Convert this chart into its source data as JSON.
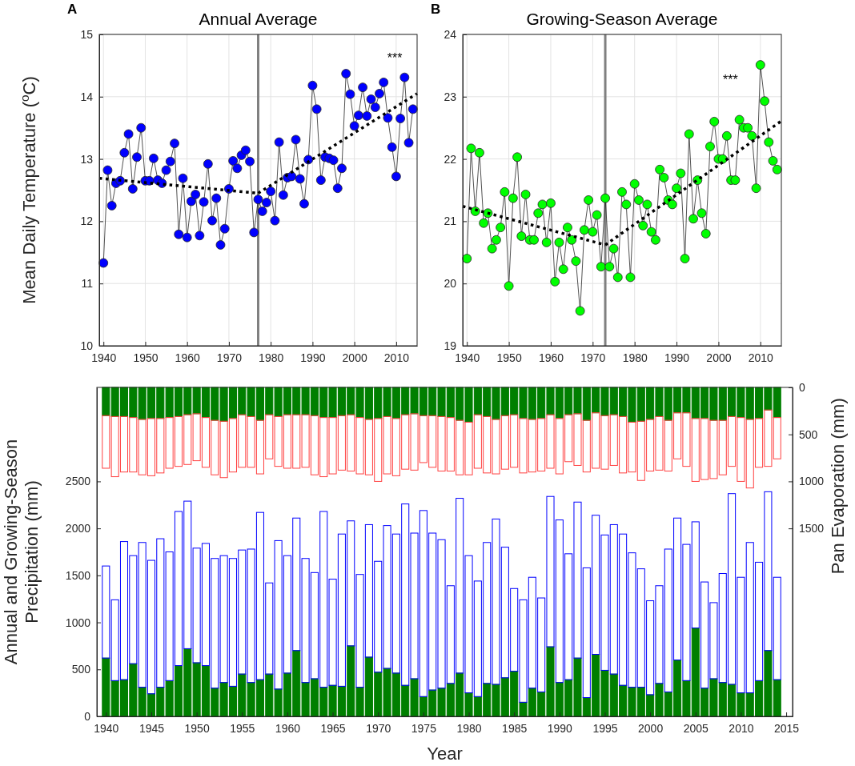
{
  "chart_data": [
    {
      "type": "line",
      "title": "Annual Average",
      "ylabel": "Mean Daily Temperature ($^{o}$C)",
      "x": [
        1940,
        1941,
        1942,
        1943,
        1944,
        1945,
        1946,
        1947,
        1948,
        1949,
        1950,
        1951,
        1952,
        1953,
        1954,
        1955,
        1956,
        1957,
        1958,
        1959,
        1960,
        1961,
        1962,
        1963,
        1964,
        1965,
        1966,
        1967,
        1968,
        1969,
        1970,
        1971,
        1972,
        1973,
        1974,
        1975,
        1976,
        1977,
        1978,
        1979,
        1980,
        1981,
        1982,
        1983,
        1984,
        1985,
        1986,
        1987,
        1988,
        1989,
        1990,
        1991,
        1992,
        1993,
        1994,
        1995,
        1996,
        1997,
        1998,
        1999,
        2000,
        2001,
        2002,
        2003,
        2004,
        2005,
        2006,
        2007,
        2008,
        2009,
        2010,
        2011,
        2012,
        2013,
        2014
      ],
      "series": [
        {
          "color": "#0000ff",
          "marker": "circle",
          "values": [
            11.33,
            12.82,
            12.25,
            12.61,
            12.65,
            13.1,
            13.4,
            12.52,
            13.03,
            13.5,
            12.65,
            12.65,
            13.01,
            12.66,
            12.61,
            12.82,
            12.96,
            13.25,
            11.79,
            12.69,
            11.74,
            12.32,
            12.43,
            11.77,
            12.31,
            12.92,
            12.01,
            12.37,
            11.62,
            11.88,
            12.52,
            12.97,
            12.85,
            13.06,
            13.14,
            12.96,
            11.82,
            12.35,
            12.16,
            12.3,
            12.48,
            12.01,
            13.27,
            12.42,
            12.7,
            12.72,
            13.31,
            12.68,
            12.28,
            12.99,
            14.18,
            13.8,
            12.66,
            13.03,
            13.01,
            12.98,
            12.53,
            12.85,
            14.37,
            14.04,
            13.53,
            13.7,
            14.15,
            13.69,
            13.96,
            13.83,
            14.05,
            14.23,
            13.66,
            13.19,
            12.72,
            13.65,
            14.31,
            13.26,
            13.8
          ]
        },
        {
          "type": "line",
          "x": [
            1939,
            1977
          ],
          "values": [
            12.69,
            12.45
          ],
          "color": "#000000",
          "line_style": "dotted",
          "marker": "none"
        },
        {
          "type": "line",
          "x": [
            1977,
            2015
          ],
          "values": [
            12.45,
            14.05
          ],
          "color": "#000000",
          "line_style": "dotted",
          "marker": "none"
        }
      ],
      "xlim": [
        1939,
        2015
      ],
      "xticks": [
        1940,
        1950,
        1960,
        1970,
        1980,
        1990,
        2000,
        2010
      ],
      "ylim": [
        10,
        15
      ],
      "yticks": [
        10,
        11,
        12,
        13,
        14,
        15
      ],
      "grid": true,
      "ref_lines": [
        {
          "axis": "x",
          "value": 1977,
          "color": "#808080"
        }
      ],
      "annotations": [
        "A",
        "***"
      ]
    },
    {
      "type": "line",
      "title": "Growing-Season Average",
      "x": [
        1940,
        1941,
        1942,
        1943,
        1944,
        1945,
        1946,
        1947,
        1948,
        1949,
        1950,
        1951,
        1952,
        1953,
        1954,
        1955,
        1956,
        1957,
        1958,
        1959,
        1960,
        1961,
        1962,
        1963,
        1964,
        1965,
        1966,
        1967,
        1968,
        1969,
        1970,
        1971,
        1972,
        1973,
        1974,
        1975,
        1976,
        1977,
        1978,
        1979,
        1980,
        1981,
        1982,
        1983,
        1984,
        1985,
        1986,
        1987,
        1988,
        1989,
        1990,
        1991,
        1992,
        1993,
        1994,
        1995,
        1996,
        1997,
        1998,
        1999,
        2000,
        2001,
        2002,
        2003,
        2004,
        2005,
        2006,
        2007,
        2008,
        2009,
        2010,
        2011,
        2012,
        2013,
        2014
      ],
      "series": [
        {
          "color": "#00ff00",
          "marker": "circle",
          "values": [
            20.4,
            22.17,
            21.16,
            22.1,
            20.97,
            21.13,
            20.56,
            20.7,
            20.9,
            21.47,
            19.96,
            21.37,
            22.03,
            20.76,
            21.43,
            20.7,
            20.7,
            21.13,
            21.27,
            20.66,
            21.29,
            20.03,
            20.66,
            20.23,
            20.9,
            20.7,
            20.36,
            19.56,
            20.86,
            21.34,
            20.83,
            21.1,
            20.27,
            21.37,
            20.27,
            20.56,
            20.1,
            21.47,
            21.27,
            20.1,
            21.6,
            21.34,
            20.93,
            21.27,
            20.83,
            20.7,
            21.83,
            21.7,
            21.34,
            21.27,
            21.53,
            21.77,
            20.4,
            22.4,
            21.04,
            21.66,
            21.13,
            20.8,
            22.2,
            22.6,
            22.0,
            22.0,
            22.37,
            21.66,
            21.66,
            22.63,
            22.5,
            22.5,
            22.37,
            21.53,
            23.51,
            22.93,
            22.27,
            21.97,
            21.83
          ]
        },
        {
          "type": "line",
          "x": [
            1939,
            1973
          ],
          "values": [
            21.24,
            20.62
          ],
          "color": "#000000",
          "line_style": "dotted",
          "marker": "none"
        },
        {
          "type": "line",
          "x": [
            1973,
            2015
          ],
          "values": [
            20.62,
            22.61
          ],
          "color": "#000000",
          "line_style": "dotted",
          "marker": "none"
        }
      ],
      "xlim": [
        1939,
        2015
      ],
      "xticks": [
        1940,
        1950,
        1960,
        1970,
        1980,
        1990,
        2000,
        2010
      ],
      "ylim": [
        19,
        24
      ],
      "yticks": [
        19,
        20,
        21,
        22,
        23,
        24
      ],
      "grid": true,
      "ref_lines": [
        {
          "axis": "x",
          "value": 1973,
          "color": "#808080"
        }
      ],
      "annotations": [
        "B",
        "***"
      ]
    },
    {
      "type": "bar",
      "xlabel": "Year",
      "ylabel": "Annual and Growing-Season Precipitation (mm)",
      "y2label": "Pan Evaporation (mm)",
      "x": [
        1940,
        1941,
        1942,
        1943,
        1944,
        1945,
        1946,
        1947,
        1948,
        1949,
        1950,
        1951,
        1952,
        1953,
        1954,
        1955,
        1956,
        1957,
        1958,
        1959,
        1960,
        1961,
        1962,
        1963,
        1964,
        1965,
        1966,
        1967,
        1968,
        1969,
        1970,
        1971,
        1972,
        1973,
        1974,
        1975,
        1976,
        1977,
        1978,
        1979,
        1980,
        1981,
        1982,
        1983,
        1984,
        1985,
        1986,
        1987,
        1988,
        1989,
        1990,
        1991,
        1992,
        1993,
        1994,
        1995,
        1996,
        1997,
        1998,
        1999,
        2000,
        2001,
        2002,
        2003,
        2004,
        2005,
        2006,
        2007,
        2008,
        2009,
        2010,
        2011,
        2012,
        2013,
        2014
      ],
      "series": [
        {
          "color": "#007f00",
          "values": [
            620,
            380,
            390,
            560,
            310,
            240,
            310,
            380,
            540,
            720,
            570,
            540,
            300,
            360,
            320,
            450,
            360,
            390,
            450,
            290,
            460,
            700,
            360,
            400,
            310,
            330,
            320,
            750,
            310,
            630,
            470,
            510,
            460,
            330,
            400,
            210,
            280,
            300,
            350,
            460,
            250,
            210,
            350,
            340,
            410,
            480,
            150,
            300,
            260,
            740,
            360,
            390,
            620,
            200,
            660,
            490,
            450,
            330,
            310,
            310,
            230,
            350,
            260,
            600,
            380,
            940,
            300,
            400,
            360,
            340,
            250,
            250,
            380,
            700,
            390
          ]
        },
        {
          "color": "#0000ff",
          "values": [
            980,
            860,
            1470,
            1150,
            1540,
            1420,
            1580,
            1370,
            1640,
            1570,
            1220,
            1300,
            1380,
            1350,
            1360,
            1320,
            1420,
            1780,
            970,
            1580,
            1250,
            1410,
            1320,
            1130,
            1870,
            1130,
            1620,
            1330,
            1200,
            1410,
            1180,
            1520,
            1480,
            1930,
            1550,
            1980,
            1670,
            1580,
            1040,
            1860,
            1460,
            1230,
            1500,
            1760,
            1390,
            880,
            1090,
            1180,
            1000,
            1600,
            1730,
            1340,
            1660,
            1380,
            1480,
            1440,
            1590,
            1610,
            1430,
            1260,
            1000,
            1040,
            1520,
            1510,
            1450,
            1130,
            1130,
            810,
            1160,
            2030,
            1230,
            1600,
            1260,
            1690,
            1090
          ]
        },
        {
          "color": "#007f00",
          "axis": "y2",
          "values": [
            300,
            310,
            310,
            320,
            340,
            330,
            330,
            320,
            310,
            290,
            280,
            320,
            350,
            360,
            330,
            290,
            310,
            350,
            290,
            310,
            290,
            290,
            290,
            300,
            320,
            320,
            300,
            290,
            320,
            340,
            330,
            310,
            330,
            290,
            280,
            300,
            300,
            310,
            320,
            350,
            370,
            290,
            310,
            340,
            300,
            290,
            330,
            340,
            330,
            290,
            330,
            290,
            280,
            350,
            270,
            300,
            290,
            310,
            370,
            360,
            340,
            310,
            350,
            270,
            270,
            330,
            330,
            350,
            350,
            310,
            320,
            340,
            330,
            240,
            320
          ]
        },
        {
          "color": "#ff4040",
          "axis": "y2",
          "values": [
            560,
            640,
            590,
            580,
            590,
            610,
            580,
            540,
            530,
            530,
            500,
            530,
            580,
            600,
            570,
            560,
            540,
            570,
            470,
            530,
            570,
            570,
            560,
            630,
            630,
            600,
            580,
            600,
            600,
            590,
            670,
            610,
            610,
            580,
            600,
            500,
            550,
            580,
            570,
            580,
            560,
            570,
            600,
            580,
            570,
            560,
            580,
            560,
            560,
            570,
            590,
            500,
            550,
            550,
            590,
            570,
            540,
            600,
            530,
            630,
            550,
            570,
            540,
            490,
            570,
            670,
            650,
            620,
            580,
            530,
            680,
            730,
            520,
            600,
            440
          ]
        }
      ],
      "stacked": true,
      "xlim": [
        1939,
        2015.7
      ],
      "xticks": [
        1940,
        1945,
        1950,
        1955,
        1960,
        1965,
        1970,
        1975,
        1980,
        1985,
        1990,
        1995,
        2000,
        2005,
        2010,
        2015
      ],
      "ylim": [
        0,
        3500
      ],
      "yticks": [
        0,
        500,
        1000,
        1500,
        2000,
        2500
      ],
      "y2lim": [
        3500,
        0
      ],
      "y2ticks": [
        0,
        500,
        1000,
        1500
      ]
    }
  ]
}
